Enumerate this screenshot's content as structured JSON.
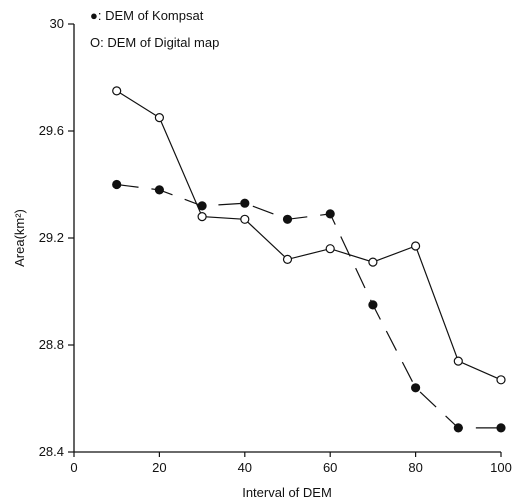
{
  "chart_data": {
    "type": "line",
    "xlabel": "Interval of DEM",
    "ylabel": "Area(km²)",
    "xlim": [
      0,
      100
    ],
    "ylim": [
      28.4,
      30
    ],
    "xticks": [
      "0",
      "20",
      "40",
      "60",
      "80",
      "100"
    ],
    "yticks": [
      "28.4",
      "28.8",
      "29.2",
      "29.6",
      "30"
    ],
    "x": [
      10,
      20,
      30,
      40,
      50,
      60,
      70,
      80,
      90,
      100
    ],
    "series": [
      {
        "name": "DEM of Kompsat",
        "legend_label": "●: DEM of Kompsat",
        "marker": "filled-circle",
        "line_style": "dashed",
        "values": [
          29.4,
          29.38,
          29.32,
          29.33,
          29.27,
          29.29,
          28.95,
          28.64,
          28.49,
          28.49
        ]
      },
      {
        "name": "DEM of Digital map",
        "legend_label": "O: DEM of Digital map",
        "marker": "open-circle",
        "line_style": "solid",
        "values": [
          29.75,
          29.65,
          29.28,
          29.27,
          29.12,
          29.16,
          29.11,
          29.17,
          28.74,
          28.67
        ]
      }
    ],
    "grid": false,
    "legend_position": "top-left"
  }
}
